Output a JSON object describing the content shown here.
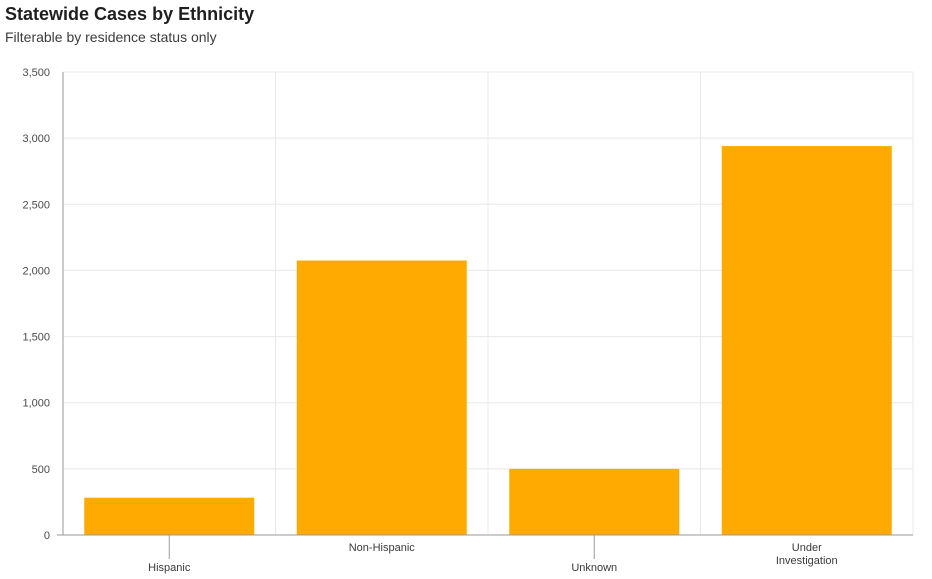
{
  "header": {
    "title": "Statewide Cases by Ethnicity",
    "subtitle": "Filterable by residence status only"
  },
  "chart_data": {
    "type": "bar",
    "title": "Statewide Cases by Ethnicity",
    "subtitle": "Filterable by residence status only",
    "xlabel": "",
    "ylabel": "",
    "categories": [
      "Hispanic",
      "Non-Hispanic",
      "Unknown",
      "Under Investigation"
    ],
    "category_label_lines": [
      [
        "Hispanic"
      ],
      [
        "Non-Hispanic"
      ],
      [
        "Unknown"
      ],
      [
        "Under",
        "Investigation"
      ]
    ],
    "values": [
      282,
      2075,
      500,
      2940
    ],
    "ylim": [
      0,
      3500
    ],
    "yticks": [
      0,
      500,
      1000,
      1500,
      2000,
      2500,
      3000,
      3500
    ],
    "ytick_labels": [
      "0",
      "500",
      "1,000",
      "1,500",
      "2,000",
      "2,500",
      "3,000",
      "3,500"
    ],
    "grid": true,
    "bar_color": "#FFAA00",
    "grid_color": "#E8E8E8",
    "axis_color": "#9A9A9A"
  }
}
